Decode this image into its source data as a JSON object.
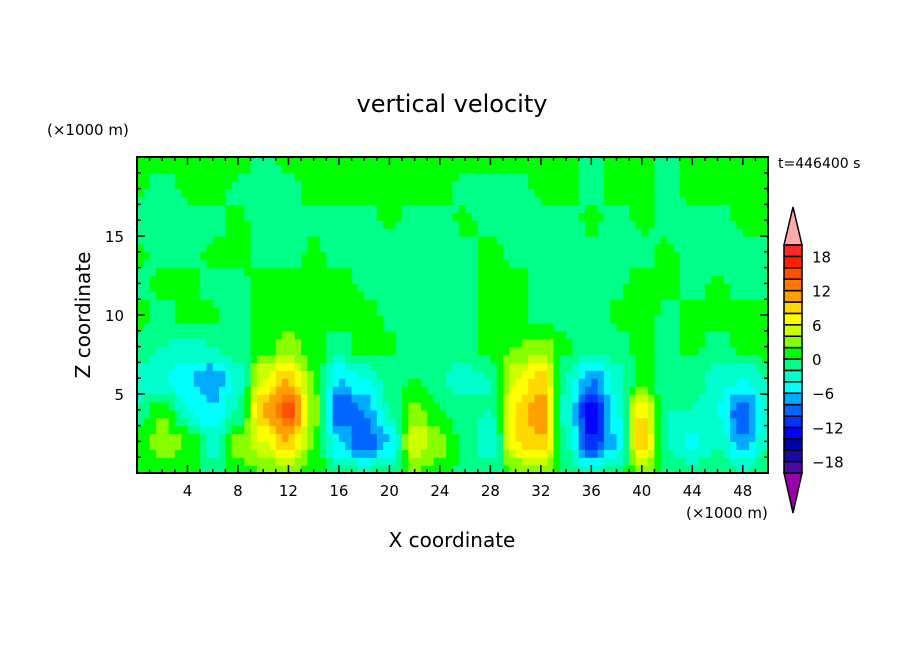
{
  "chart_data": {
    "type": "heatmap",
    "title": "vertical velocity",
    "xlabel": "X coordinate",
    "ylabel": "Z coordinate",
    "x_unit": "(×1000 m)",
    "y_unit": "(×1000 m)",
    "time_label": "t=446400 s",
    "xlim": [
      0,
      50
    ],
    "ylim": [
      0,
      20
    ],
    "x_ticks": [
      4,
      8,
      12,
      16,
      20,
      24,
      28,
      32,
      36,
      40,
      44,
      48
    ],
    "y_ticks": [
      5,
      10,
      15
    ],
    "grid_x": [
      0,
      2,
      4,
      6,
      8,
      10,
      12,
      14,
      16,
      18,
      20,
      22,
      24,
      26,
      28,
      30,
      32,
      34,
      36,
      38,
      40,
      42,
      44,
      46,
      48,
      50
    ],
    "grid_z": [
      0,
      2,
      4,
      6,
      8,
      10,
      12,
      14,
      16,
      18,
      20
    ],
    "values": [
      [
        0,
        0.5,
        1,
        -1,
        1,
        2,
        3,
        1,
        -1,
        -2,
        -1,
        2,
        1,
        -0.5,
        -1,
        2,
        3,
        -0.5,
        -3,
        -1,
        3,
        -0.5,
        -1,
        -0.5,
        -2,
        -0.5
      ],
      [
        1,
        3,
        2,
        -3,
        3,
        6,
        10,
        2,
        -6,
        -10,
        -6,
        6,
        3,
        -1,
        -4,
        8,
        10,
        -2,
        -12,
        -6,
        10,
        -2,
        -5,
        -2,
        -8,
        -2
      ],
      [
        -2,
        2,
        -4,
        -6,
        -2,
        10,
        15,
        3,
        -10,
        -8,
        -2,
        3,
        0,
        -1,
        -2,
        8,
        12,
        -3,
        -14,
        -4,
        8,
        -2,
        -2,
        -4,
        -10,
        -3
      ],
      [
        -3,
        -4,
        -6,
        -8,
        -3,
        6,
        10,
        2,
        -6,
        -4,
        -1,
        0,
        -2,
        -3,
        -2,
        6,
        9,
        -2,
        -8,
        -3,
        1,
        -2,
        -1,
        -3,
        -4,
        -2
      ],
      [
        -1,
        -2,
        -3,
        -2,
        -1,
        1,
        3,
        1,
        -1,
        1,
        0.5,
        -1,
        -1,
        -0.5,
        1,
        2,
        3,
        0.5,
        -1,
        -1,
        0.5,
        -0.5,
        0.5,
        -1,
        0.5,
        1
      ],
      [
        1,
        -1,
        1,
        0.5,
        -1,
        1,
        1,
        1,
        0.5,
        1,
        -0.5,
        -1,
        -1,
        -0.5,
        1,
        0.5,
        -0.5,
        -1,
        -1,
        0.5,
        1,
        -0.5,
        1,
        1,
        0.5,
        1
      ],
      [
        -1,
        0.5,
        1,
        -1,
        -0.5,
        1,
        1,
        0.5,
        1,
        -0.5,
        -1,
        -1,
        -1,
        -1,
        0.5,
        1,
        -0.5,
        -1,
        -1,
        -0.5,
        1,
        0.5,
        -1,
        0.5,
        -1,
        -0.5
      ],
      [
        0.5,
        -1,
        -1,
        0.5,
        1,
        -1,
        -1,
        0.5,
        -1,
        -1,
        -1,
        -1,
        -1,
        -0.5,
        1,
        -1,
        -1,
        -1,
        -0.5,
        -1,
        -1,
        0.5,
        -1,
        -1,
        -1,
        -1
      ],
      [
        -1,
        -1,
        -1,
        -1,
        0.5,
        -1,
        -1,
        -0.5,
        -1,
        -1,
        0.5,
        -1,
        -1,
        0.5,
        -1,
        -1,
        -1,
        -1,
        0.5,
        -1,
        0.5,
        -1,
        -1,
        -1,
        0.5,
        1
      ],
      [
        0.5,
        -1,
        0.5,
        1,
        -0.5,
        -1,
        -1,
        1,
        0.5,
        1,
        1,
        0.5,
        1,
        -1,
        -0.5,
        -1,
        0.5,
        1,
        -1,
        1,
        0.5,
        -1,
        1,
        1,
        0.5,
        0.5
      ],
      [
        1,
        1,
        0.5,
        1,
        1,
        -1,
        1,
        1,
        1,
        1,
        1,
        1,
        1,
        1,
        0.5,
        1,
        1,
        1,
        -1,
        1,
        1,
        -1,
        0.5,
        1,
        1,
        1
      ]
    ],
    "levels": [
      -20,
      -18,
      -16,
      -14,
      -12,
      -10,
      -8,
      -6,
      -4,
      -2,
      0,
      2,
      4,
      6,
      8,
      10,
      12,
      14,
      16,
      18,
      20
    ],
    "colorbar_labels": [
      18,
      12,
      6,
      0,
      -6,
      -12,
      -18
    ],
    "colors": [
      "#4b0aa0",
      "#1a0aa0",
      "#0000aa",
      "#0000ff",
      "#0033ff",
      "#0066ff",
      "#00aaff",
      "#00ffff",
      "#00ffcc",
      "#00ff88",
      "#00ff00",
      "#88ff00",
      "#ccff00",
      "#ffff00",
      "#ffd800",
      "#ffa000",
      "#ff7800",
      "#ff5000",
      "#ff2000",
      "#ff2828"
    ],
    "over_color": "#ffaaaa",
    "under_color": "#9900aa"
  }
}
